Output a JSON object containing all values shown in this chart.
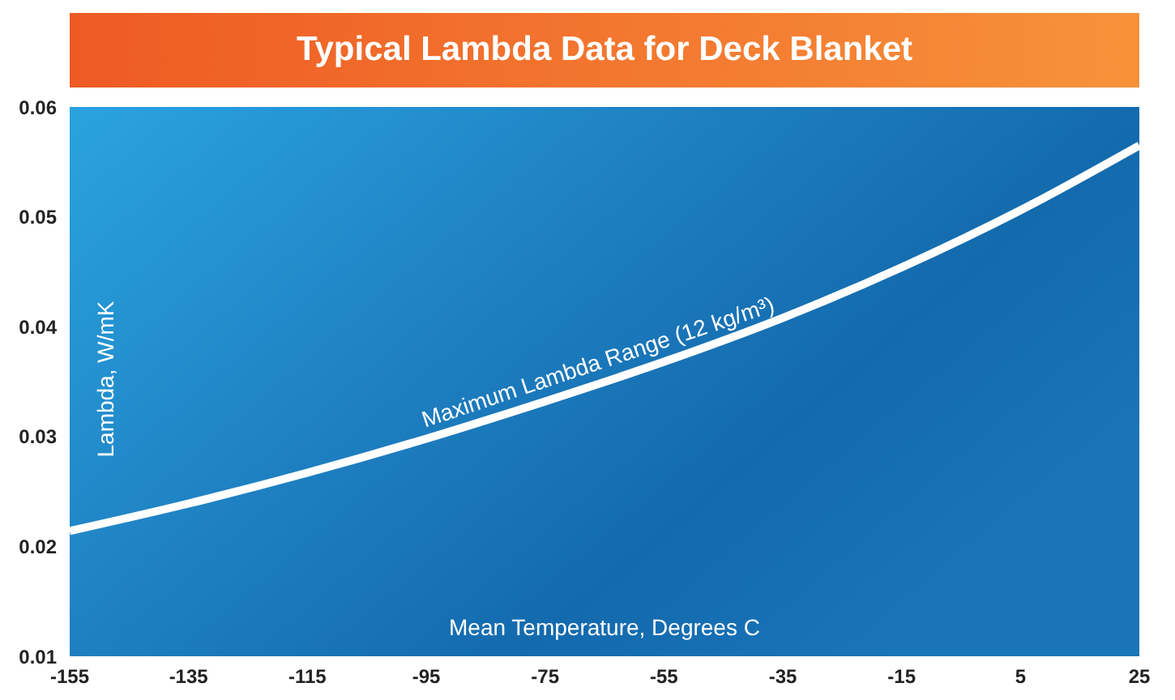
{
  "chart_data": {
    "type": "line",
    "title": "Typical Lambda Data for Deck Blanket",
    "xlabel": "Mean Temperature, Degrees C",
    "ylabel": "Lambda, W/mK",
    "x": [
      -155,
      -135,
      -115,
      -95,
      -75,
      -55,
      -35,
      -15,
      5,
      25
    ],
    "series": [
      {
        "name": "Maximum Lambda Range (12 kg/m³)",
        "color": "#ffffff",
        "values": [
          0.0214,
          0.0239,
          0.0267,
          0.0298,
          0.0332,
          0.0368,
          0.0408,
          0.0454,
          0.0506,
          0.0565
        ]
      }
    ],
    "xlim": [
      -155,
      25
    ],
    "xticks": [
      -155,
      -135,
      -115,
      -95,
      -75,
      -55,
      -35,
      -15,
      5,
      25
    ],
    "ylim": [
      0.01,
      0.06
    ],
    "yticks": [
      0.01,
      0.02,
      0.03,
      0.04,
      0.05,
      0.06
    ],
    "grid": false,
    "legend": false,
    "marker": "none",
    "line_style": "solid"
  }
}
